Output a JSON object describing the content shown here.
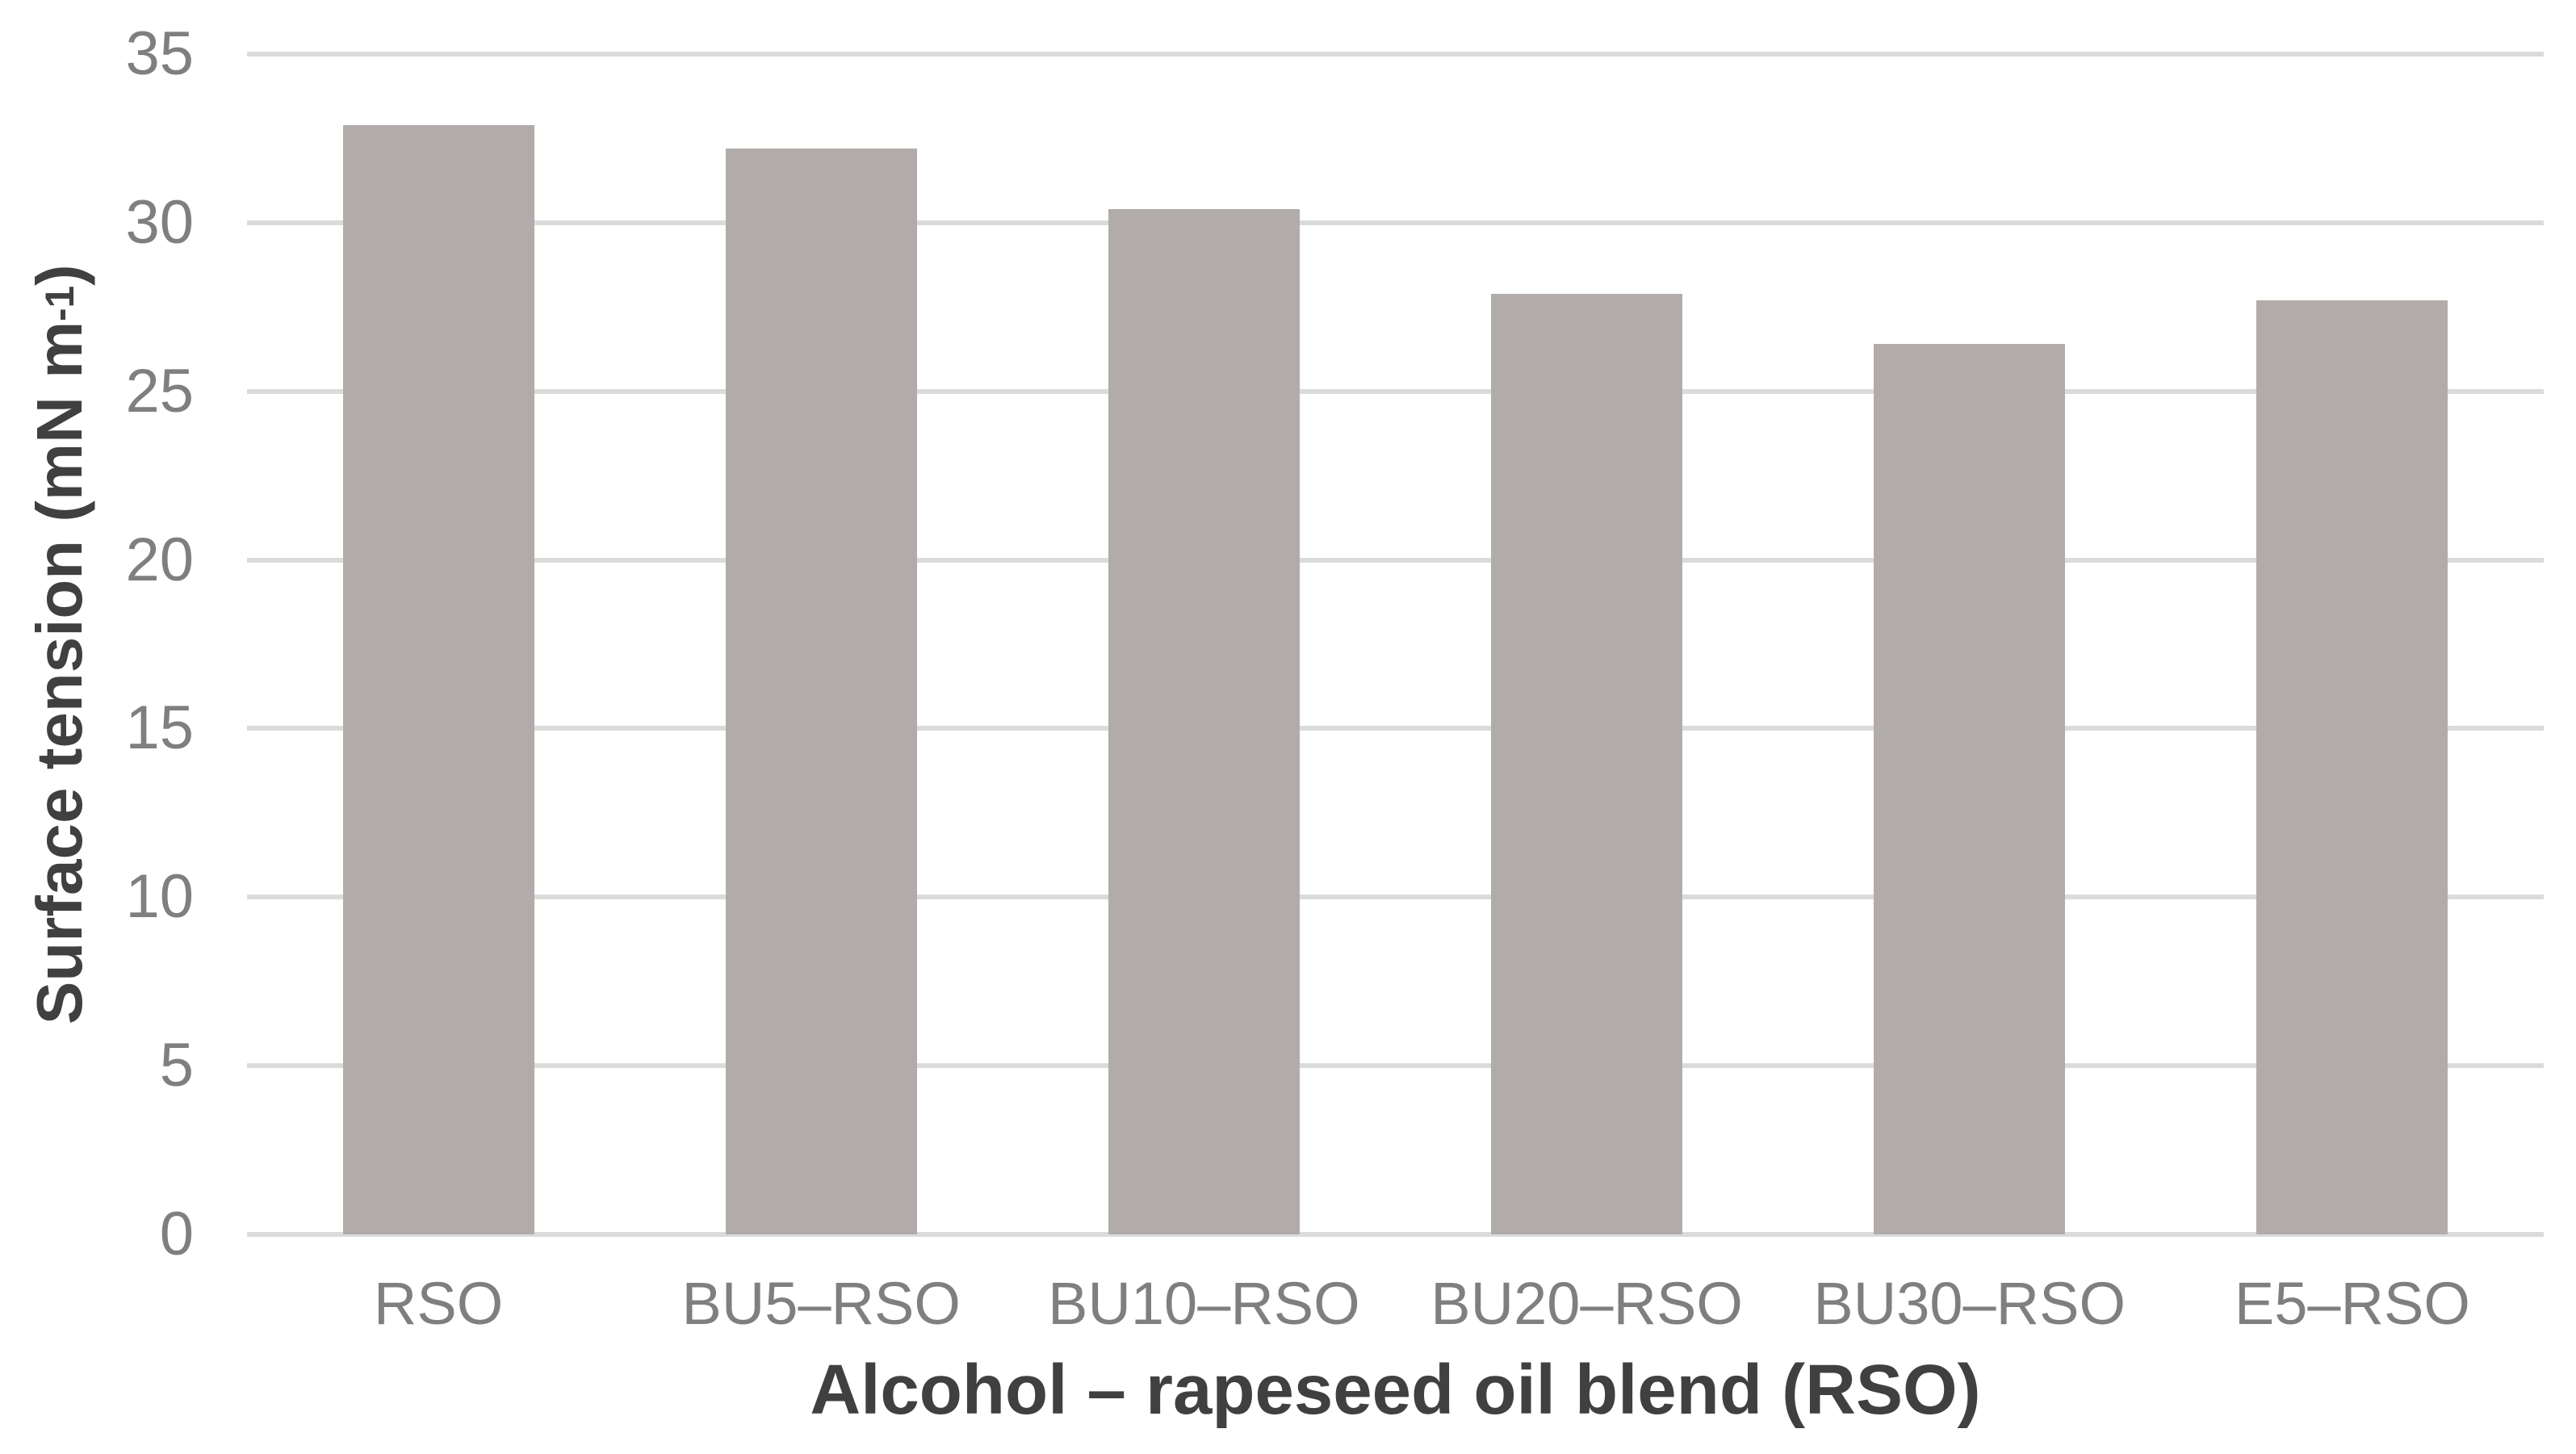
{
  "chart_data": {
    "type": "bar",
    "title": "",
    "categories": [
      "RSO",
      "BU5–RSO",
      "BU10–RSO",
      "BU20–RSO",
      "BU30–RSO",
      "E5–RSO"
    ],
    "values": [
      32.9,
      32.2,
      30.4,
      27.9,
      26.4,
      27.7
    ],
    "series_name": "Surface tension",
    "xlabel": "Alcohol – rapeseed oil blend (RSO)",
    "ylabel": "Surface tension (mN m⁻¹)",
    "ylabel_parts": {
      "pre": "Surface tension (mN m",
      "sup": "-1",
      "post": ")"
    },
    "ylim": [
      0,
      35
    ],
    "yticks": [
      0,
      5,
      10,
      15,
      20,
      25,
      30,
      35
    ],
    "grid": "horizontal-only",
    "legend": "none",
    "colors": {
      "bar_fill": "#b1acaa",
      "gridline": "#dbdbdb",
      "axis_line": "#dbdbdb",
      "tick_label": "#7f7f7f",
      "axis_title": "#404040",
      "background": "#ffffff"
    }
  }
}
